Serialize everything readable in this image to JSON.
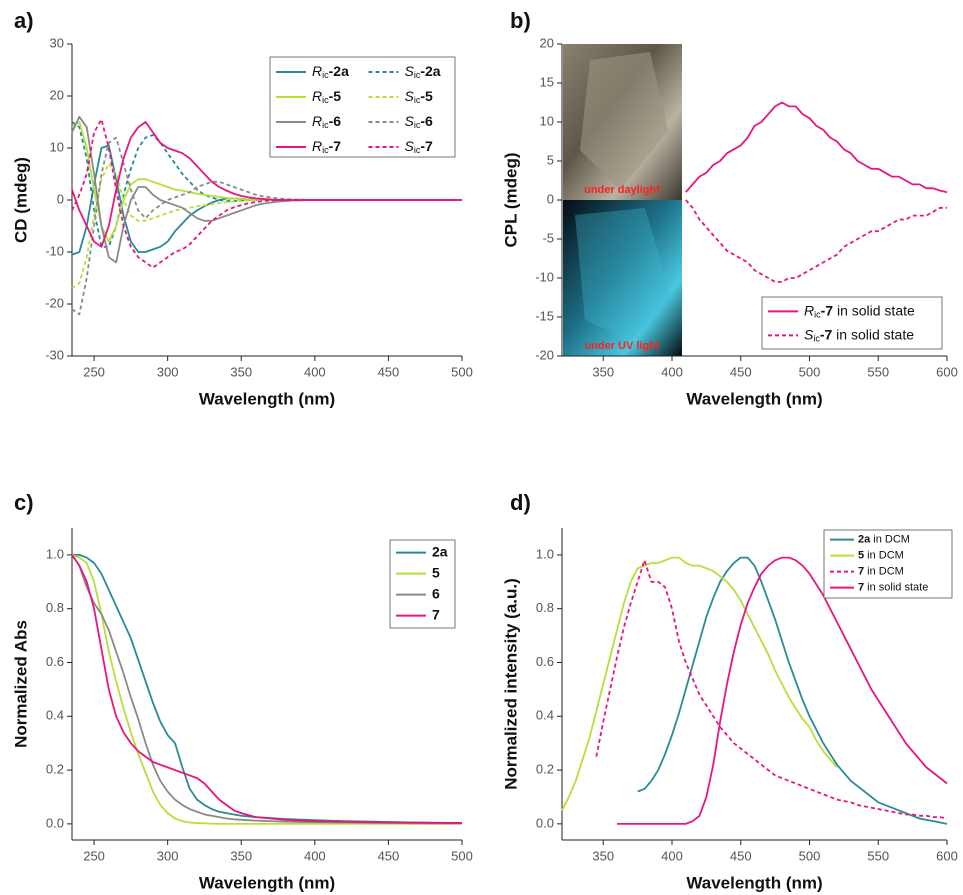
{
  "chart_data": [
    {
      "type": "line",
      "label": "a)",
      "x_label": "Wavelength (nm)",
      "y_label": "CD (mdeg)",
      "legend_loc": "upper right",
      "legend_columns": 2,
      "xlim": [
        235,
        500
      ],
      "ylim": [
        -30,
        30
      ],
      "xticks": [
        250,
        300,
        350,
        400,
        450,
        500
      ],
      "yticks": [
        -30,
        -20,
        -10,
        0,
        10,
        20,
        30
      ],
      "x": [
        235,
        240,
        245,
        250,
        255,
        260,
        265,
        270,
        275,
        280,
        285,
        290,
        295,
        300,
        305,
        310,
        315,
        320,
        325,
        330,
        335,
        340,
        345,
        350,
        355,
        360,
        365,
        370,
        375,
        380,
        385,
        390,
        395,
        400,
        420,
        440,
        460,
        480,
        500
      ],
      "series": [
        {
          "name": "Ric-2a",
          "color": "#2a8a96",
          "dash": false,
          "values": [
            -10.5,
            -10,
            -5,
            3,
            10,
            10.5,
            4,
            -3,
            -8,
            -10,
            -10,
            -9.5,
            -9,
            -8,
            -6,
            -4.5,
            -3,
            -2,
            -1.2,
            -0.5,
            0,
            0.3,
            0.3,
            0.2,
            0.1,
            0.1,
            0,
            0,
            0,
            0,
            0,
            0,
            0,
            0,
            0,
            0,
            0,
            0,
            0
          ]
        },
        {
          "name": "Sic-2a",
          "color": "#2a8a96",
          "dash": true,
          "values": [
            15,
            14,
            8,
            -2,
            -9,
            -9,
            -5,
            1,
            6,
            10,
            12,
            12.5,
            11,
            9,
            7,
            5,
            3.5,
            2,
            1,
            0.5,
            0,
            -0.2,
            -0.2,
            -0.1,
            0,
            0,
            0,
            0,
            0,
            0,
            0,
            0,
            0,
            0,
            0,
            0,
            0,
            0,
            0
          ]
        },
        {
          "name": "Ric-5",
          "color": "#b5e03a",
          "dash": false,
          "values": [
            14,
            15,
            10,
            2,
            -5,
            -8,
            -5,
            0,
            3,
            4,
            4,
            3.5,
            3,
            2.5,
            2,
            1.8,
            1.5,
            1.2,
            1,
            0.8,
            0.6,
            0.4,
            0.3,
            0.2,
            0.1,
            0.1,
            0,
            0,
            0,
            0,
            0,
            0,
            0,
            0,
            0,
            0,
            0,
            0,
            0
          ]
        },
        {
          "name": "Sic-5",
          "color": "#b5e03a",
          "dash": true,
          "values": [
            -17,
            -16,
            -11,
            -3,
            4,
            7,
            5,
            0,
            -3,
            -4,
            -4,
            -3.5,
            -3,
            -2.5,
            -2,
            -1.8,
            -1.5,
            -1.2,
            -1,
            -0.8,
            -0.6,
            -0.4,
            -0.3,
            -0.2,
            -0.1,
            -0.1,
            0,
            0,
            0,
            0,
            0,
            0,
            0,
            0,
            0,
            0,
            0,
            0,
            0
          ]
        },
        {
          "name": "Ric-6",
          "color": "#8a8a8a",
          "dash": false,
          "values": [
            13,
            16,
            14,
            5,
            -5,
            -11,
            -12,
            -5,
            0,
            2.5,
            2.5,
            1,
            0,
            -0.5,
            -1,
            -1.5,
            -2.5,
            -3.5,
            -4,
            -4,
            -3.5,
            -3,
            -2.5,
            -2,
            -1.5,
            -1,
            -0.7,
            -0.5,
            -0.3,
            -0.2,
            -0.1,
            -0.1,
            0,
            0,
            0,
            0,
            0,
            0,
            0
          ]
        },
        {
          "name": "Sic-6",
          "color": "#8a8a8a",
          "dash": true,
          "values": [
            -21,
            -22,
            -15,
            -5,
            5,
            11,
            12,
            7,
            2,
            -2,
            -3.5,
            -2,
            -1,
            0,
            0.5,
            1,
            1.5,
            2.5,
            3,
            3.5,
            3.5,
            3,
            2.5,
            2,
            1.5,
            1,
            0.7,
            0.5,
            0.3,
            0.2,
            0.1,
            0.1,
            0,
            0,
            0,
            0,
            0,
            0,
            0
          ]
        },
        {
          "name": "Ric-7",
          "color": "#e8157f",
          "dash": false,
          "values": [
            2,
            -2,
            -5,
            -8,
            -9,
            -5,
            2,
            8,
            12,
            14,
            15,
            13,
            11,
            10,
            9.5,
            9,
            8,
            6.5,
            5,
            3.5,
            2.5,
            1.8,
            1.2,
            0.8,
            0.5,
            0.3,
            0.2,
            0.1,
            0,
            0,
            0,
            0,
            0,
            0,
            0,
            0,
            0,
            0,
            0
          ]
        },
        {
          "name": "Sic-7",
          "color": "#e8157f",
          "dash": true,
          "values": [
            -2,
            1,
            5,
            13,
            15.5,
            10,
            2,
            -5,
            -9,
            -11,
            -12,
            -13,
            -12,
            -11,
            -10,
            -9.5,
            -8.5,
            -7,
            -5.5,
            -4,
            -3,
            -2,
            -1.4,
            -1,
            -0.6,
            -0.4,
            -0.2,
            -0.1,
            0,
            0,
            0,
            0,
            0,
            0,
            0,
            0,
            0,
            0,
            0
          ]
        }
      ]
    },
    {
      "type": "line",
      "label": "b)",
      "x_label": "Wavelength (nm)",
      "y_label": "CPL (mdeg)",
      "legend_loc": "lower right",
      "legend_columns": 1,
      "insets": [
        "under daylight",
        "under UV light"
      ],
      "xlim": [
        320,
        600
      ],
      "ylim": [
        -20,
        20
      ],
      "xticks": [
        350,
        400,
        450,
        500,
        550,
        600
      ],
      "yticks": [
        -20,
        -15,
        -10,
        -5,
        0,
        5,
        10,
        15,
        20
      ],
      "x": [
        410,
        415,
        420,
        425,
        430,
        435,
        440,
        445,
        450,
        455,
        460,
        465,
        470,
        475,
        480,
        485,
        490,
        495,
        500,
        505,
        510,
        515,
        520,
        525,
        530,
        535,
        540,
        545,
        550,
        555,
        560,
        565,
        570,
        575,
        580,
        585,
        590,
        595,
        600
      ],
      "series": [
        {
          "name": "Ric-7 in solid state",
          "color": "#e8157f",
          "dash": false,
          "values": [
            1,
            2,
            3,
            3.5,
            4.5,
            5,
            6,
            6.5,
            7,
            8,
            9.5,
            10,
            11,
            12,
            12.5,
            12,
            12,
            11,
            10.5,
            9.5,
            9,
            8,
            7.5,
            6.5,
            6,
            5,
            4.5,
            4,
            4,
            3.5,
            3,
            3,
            2.5,
            2,
            2,
            1.5,
            1.5,
            1.2,
            1
          ]
        },
        {
          "name": "Sic-7 in solid state",
          "color": "#e8157f",
          "dash": true,
          "values": [
            0,
            -1,
            -2.5,
            -3.5,
            -4.5,
            -5.5,
            -6.5,
            -7,
            -7.5,
            -8,
            -9,
            -9.5,
            -10,
            -10.5,
            -10.5,
            -10,
            -10,
            -9.5,
            -9,
            -8.5,
            -8,
            -7.5,
            -7,
            -6,
            -5.5,
            -5,
            -4.5,
            -4,
            -4,
            -3.5,
            -3,
            -2.5,
            -2.5,
            -2,
            -2,
            -2,
            -1.5,
            -1,
            -1
          ]
        }
      ]
    },
    {
      "type": "line",
      "label": "c)",
      "x_label": "Wavelength (nm)",
      "y_label": "Normalized Abs",
      "legend_loc": "upper right",
      "legend_columns": 1,
      "xlim": [
        235,
        500
      ],
      "ylim": [
        -0.06,
        1.1
      ],
      "xticks": [
        250,
        300,
        350,
        400,
        450,
        500
      ],
      "yticks": [
        {
          "value": 0,
          "label": "0.0"
        },
        0.2,
        0.4,
        0.6,
        0.8,
        {
          "value": 1,
          "label": "1.0"
        }
      ],
      "x": [
        235,
        240,
        245,
        250,
        255,
        260,
        265,
        270,
        275,
        280,
        285,
        290,
        295,
        300,
        305,
        310,
        315,
        320,
        325,
        330,
        335,
        340,
        345,
        350,
        360,
        380,
        400,
        420,
        440,
        460,
        480,
        500
      ],
      "series": [
        {
          "name": "2a",
          "color": "#2a8a96",
          "dash": false,
          "values": [
            1,
            1,
            0.99,
            0.97,
            0.93,
            0.87,
            0.81,
            0.75,
            0.69,
            0.61,
            0.53,
            0.45,
            0.38,
            0.33,
            0.3,
            0.21,
            0.13,
            0.09,
            0.07,
            0.055,
            0.045,
            0.04,
            0.035,
            0.03,
            0.025,
            0.018,
            0.014,
            0.01,
            0.008,
            0.006,
            0.004,
            0.003
          ]
        },
        {
          "name": "5",
          "color": "#b5e03a",
          "dash": false,
          "values": [
            1,
            0.99,
            0.97,
            0.9,
            0.78,
            0.64,
            0.53,
            0.43,
            0.34,
            0.26,
            0.19,
            0.12,
            0.07,
            0.04,
            0.02,
            0.01,
            0.005,
            0.003,
            0.002,
            0.001,
            0,
            0,
            0,
            0,
            0,
            0,
            0,
            0,
            0,
            0,
            0,
            0
          ]
        },
        {
          "name": "6",
          "color": "#8a8a8a",
          "dash": false,
          "values": [
            1,
            0.96,
            0.88,
            0.82,
            0.78,
            0.72,
            0.64,
            0.56,
            0.47,
            0.39,
            0.3,
            0.22,
            0.16,
            0.12,
            0.09,
            0.07,
            0.055,
            0.045,
            0.035,
            0.03,
            0.025,
            0.02,
            0.017,
            0.015,
            0.012,
            0.008,
            0.006,
            0.005,
            0.004,
            0.003,
            0.002,
            0.002
          ]
        },
        {
          "name": "7",
          "color": "#e8157f",
          "dash": false,
          "values": [
            1,
            0.96,
            0.9,
            0.8,
            0.65,
            0.5,
            0.4,
            0.34,
            0.3,
            0.27,
            0.25,
            0.23,
            0.22,
            0.21,
            0.2,
            0.19,
            0.18,
            0.17,
            0.15,
            0.12,
            0.09,
            0.07,
            0.05,
            0.04,
            0.025,
            0.015,
            0.01,
            0.008,
            0.006,
            0.005,
            0.004,
            0.003
          ]
        }
      ]
    },
    {
      "type": "line",
      "label": "d)",
      "x_label": "Wavelength (nm)",
      "y_label": "Normalized intensity (a.u.)",
      "legend_loc": "upper right",
      "legend_columns": 1,
      "xlim": [
        320,
        600
      ],
      "ylim": [
        -0.06,
        1.1
      ],
      "xticks": [
        350,
        400,
        450,
        500,
        550,
        600
      ],
      "yticks": [
        {
          "value": 0,
          "label": "0.0"
        },
        0.2,
        0.4,
        0.6,
        0.8,
        {
          "value": 1,
          "label": "1.0"
        }
      ],
      "x": [
        320,
        325,
        330,
        335,
        340,
        345,
        350,
        355,
        360,
        365,
        370,
        375,
        380,
        385,
        390,
        395,
        400,
        405,
        410,
        415,
        420,
        425,
        430,
        435,
        440,
        445,
        450,
        455,
        460,
        465,
        470,
        475,
        480,
        485,
        490,
        495,
        500,
        505,
        510,
        515,
        520,
        525,
        530,
        535,
        540,
        545,
        550,
        555,
        560,
        565,
        570,
        575,
        580,
        585,
        590,
        595,
        600
      ],
      "series": [
        {
          "name": "2a in DCM",
          "color": "#2a8a96",
          "dash": false,
          "values": [
            null,
            null,
            null,
            null,
            null,
            null,
            null,
            null,
            null,
            null,
            null,
            0.12,
            0.13,
            0.16,
            0.2,
            0.26,
            0.33,
            0.41,
            0.5,
            0.59,
            0.68,
            0.77,
            0.84,
            0.9,
            0.94,
            0.97,
            0.99,
            0.99,
            0.96,
            0.9,
            0.83,
            0.76,
            0.68,
            0.6,
            0.53,
            0.46,
            0.4,
            0.35,
            0.3,
            0.26,
            0.22,
            0.19,
            0.16,
            0.14,
            0.12,
            0.1,
            0.08,
            0.07,
            0.06,
            0.05,
            0.04,
            0.03,
            0.02,
            0.015,
            0.01,
            0.005,
            0
          ]
        },
        {
          "name": "5 in DCM",
          "color": "#b5e03a",
          "dash": false,
          "values": [
            0.05,
            0.1,
            0.16,
            0.24,
            0.32,
            0.42,
            0.52,
            0.62,
            0.72,
            0.82,
            0.9,
            0.95,
            0.96,
            0.97,
            0.97,
            0.98,
            0.99,
            0.99,
            0.97,
            0.96,
            0.96,
            0.95,
            0.94,
            0.92,
            0.9,
            0.87,
            0.83,
            0.78,
            0.73,
            0.68,
            0.63,
            0.57,
            0.52,
            0.47,
            0.43,
            0.39,
            0.36,
            0.31,
            0.27,
            0.24,
            0.21,
            null,
            null,
            null,
            null,
            null,
            null,
            null,
            null,
            null,
            null,
            null,
            null,
            null,
            null,
            null,
            null
          ]
        },
        {
          "name": "7 in DCM",
          "color": "#e8157f",
          "dash": true,
          "values": [
            null,
            null,
            null,
            null,
            null,
            0.25,
            0.38,
            0.5,
            0.62,
            0.73,
            0.82,
            0.9,
            0.98,
            0.9,
            0.9,
            0.88,
            0.8,
            0.68,
            0.6,
            0.54,
            0.48,
            0.44,
            0.4,
            0.36,
            0.33,
            0.3,
            0.28,
            0.26,
            0.24,
            0.22,
            0.2,
            0.18,
            0.17,
            0.16,
            0.15,
            0.14,
            0.13,
            0.12,
            0.11,
            0.1,
            0.09,
            0.085,
            0.08,
            0.07,
            0.065,
            0.06,
            0.055,
            0.05,
            0.045,
            0.04,
            0.035,
            0.035,
            0.03,
            0.03,
            0.025,
            0.025,
            0.02
          ]
        },
        {
          "name": "7 in solid state",
          "color": "#e8157f",
          "dash": false,
          "values": [
            null,
            null,
            null,
            null,
            null,
            null,
            null,
            null,
            0,
            0,
            0,
            0,
            0,
            0,
            0,
            0,
            0,
            0,
            0,
            0.01,
            0.03,
            0.1,
            0.22,
            0.38,
            0.52,
            0.64,
            0.74,
            0.82,
            0.88,
            0.93,
            0.96,
            0.98,
            0.99,
            0.99,
            0.98,
            0.96,
            0.93,
            0.89,
            0.85,
            0.8,
            0.75,
            0.7,
            0.65,
            0.6,
            0.55,
            0.5,
            0.46,
            0.42,
            0.38,
            0.34,
            0.3,
            0.27,
            0.24,
            0.21,
            0.19,
            0.17,
            0.15
          ]
        }
      ]
    }
  ]
}
